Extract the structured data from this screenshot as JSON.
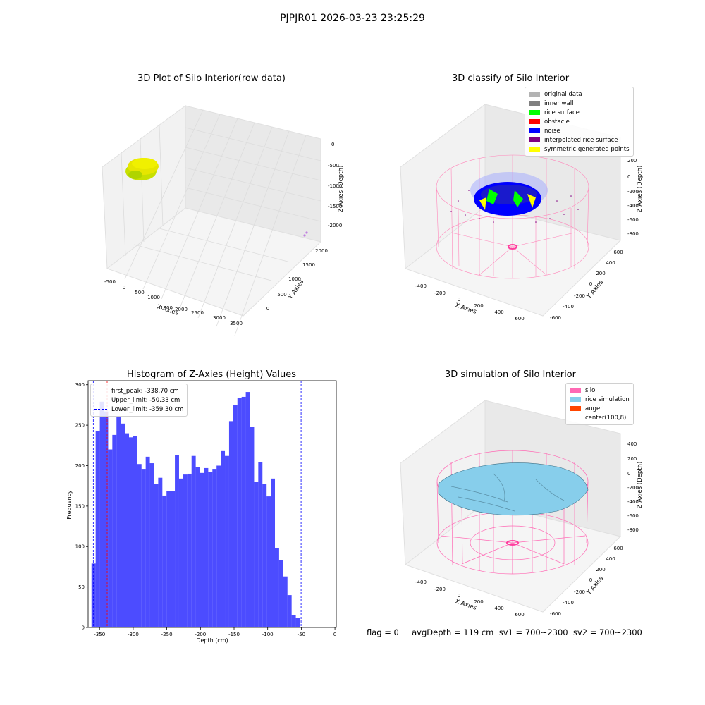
{
  "suptitle": "PJPJR01 2026-03-23 23:25:29",
  "panels": {
    "raw": {
      "title": "3D Plot of Silo Interior(row data)",
      "xlabel": "X Axies",
      "ylabel": "Y Axies",
      "zlabel": "Z Axies (Depth)",
      "xticks": [
        "-500",
        "0",
        "500",
        "1000",
        "1500",
        "2000",
        "2500",
        "3000",
        "3500"
      ],
      "yticks": [
        "0",
        "500",
        "1000",
        "1500",
        "2000"
      ],
      "zticks": [
        "0",
        "-500",
        "-1000",
        "-1500",
        "-2000"
      ],
      "cluster_color": "#e6e600"
    },
    "classify": {
      "title": "3D classify of Silo Interior",
      "xlabel": "X Axies",
      "ylabel": "Y Axies",
      "zlabel": "Z Axies (Depth)",
      "xticks": [
        "-400",
        "-200",
        "0",
        "200",
        "400",
        "600"
      ],
      "yticks": [
        "-600",
        "-400",
        "-200",
        "0",
        "200",
        "400",
        "600"
      ],
      "zticks": [
        "200",
        "0",
        "-200",
        "-400",
        "-600",
        "-800"
      ],
      "legend": [
        {
          "label": "original data",
          "color": "#b3b3b3"
        },
        {
          "label": "inner wall",
          "color": "#808080"
        },
        {
          "label": "rice surface",
          "color": "#00ff00"
        },
        {
          "label": "obstacle",
          "color": "#ff0000"
        },
        {
          "label": "noise",
          "color": "#0000ff"
        },
        {
          "label": "interpolated rice surface",
          "color": "#800080"
        },
        {
          "label": "symmetric generated points",
          "color": "#ffff00"
        }
      ]
    },
    "histogram": {
      "title": "Histogram of Z-Axies (Height) Values",
      "xlabel": "Depth (cm)",
      "ylabel": "Frequency",
      "legend": [
        {
          "label": "first_peak: -338.70 cm",
          "color": "#ff0000"
        },
        {
          "label": "Upper_limit: -50.33 cm",
          "color": "#0000ff"
        },
        {
          "label": "Lower_limit: -359.30 cm",
          "color": "#0000ff"
        }
      ]
    },
    "simulation": {
      "title": "3D simulation of Silo Interior",
      "xlabel": "X Axies",
      "ylabel": "Y Axies",
      "zlabel": "Z Axies (Depth)",
      "xticks": [
        "-400",
        "-200",
        "0",
        "200",
        "400",
        "600"
      ],
      "yticks": [
        "-600",
        "-400",
        "-200",
        "0",
        "200",
        "400",
        "600"
      ],
      "zticks": [
        "400",
        "200",
        "0",
        "-200",
        "-400",
        "-600",
        "-800"
      ],
      "legend": [
        {
          "label": "silo",
          "color": "#ff69b4"
        },
        {
          "label": "rice simulation",
          "color": "#87ceeb"
        },
        {
          "label": "auger",
          "color": "#ff4500"
        },
        {
          "label": "center(100,8)",
          "color": "#ffffff"
        }
      ]
    }
  },
  "stats_line": "flag = 0     avgDepth = 119 cm  sv1 = 700~2300  sv2 = 700~2300",
  "chart_data": [
    {
      "type": "bar",
      "title": "Histogram of Z-Axies (Height) Values",
      "xlabel": "Depth (cm)",
      "ylabel": "Frequency",
      "xlim": [
        -367,
        2
      ],
      "ylim": [
        0,
        305
      ],
      "xticks": [
        -350,
        -300,
        -250,
        -200,
        -150,
        -100,
        -50,
        0
      ],
      "yticks": [
        0,
        50,
        100,
        150,
        200,
        250,
        300
      ],
      "bin_start": -362,
      "bin_width": 6.2,
      "values": [
        79,
        243,
        279,
        267,
        220,
        238,
        260,
        252,
        240,
        235,
        237,
        202,
        196,
        211,
        203,
        177,
        185,
        163,
        169,
        169,
        213,
        184,
        189,
        190,
        212,
        198,
        191,
        197,
        192,
        196,
        200,
        218,
        212,
        255,
        275,
        284,
        285,
        291,
        248,
        180,
        204,
        177,
        162,
        184,
        98,
        83,
        63,
        40,
        15,
        12
      ],
      "color": "#0000ff",
      "vlines": [
        {
          "x": -338.7,
          "color": "#ff0000",
          "label": "first_peak: -338.70 cm"
        },
        {
          "x": -50.33,
          "color": "#0000ff",
          "label": "Upper_limit: -50.33 cm"
        },
        {
          "x": -359.3,
          "color": "#0000ff",
          "label": "Lower_limit: -359.30 cm"
        }
      ],
      "legend_loc": "upper left"
    }
  ]
}
